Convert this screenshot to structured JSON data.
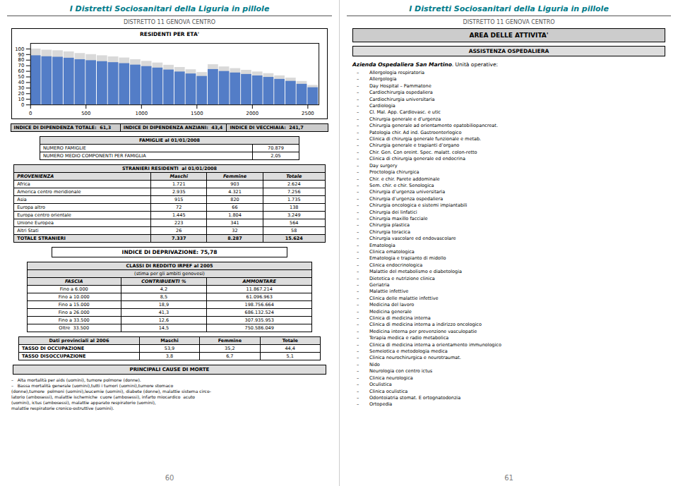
{
  "chart_data": {
    "type": "bar",
    "title": "RESIDENTI PER ETA'",
    "x": [
      0,
      100,
      200,
      300,
      400,
      500,
      600,
      700,
      800,
      900,
      1000,
      1100,
      1200,
      1300,
      1400,
      1500,
      1600,
      1700,
      1800,
      1900,
      2000,
      2100,
      2200,
      2300,
      2400,
      2500
    ],
    "series": [
      {
        "color": "#A0A0A0",
        "values": [
          100,
          98,
          97,
          95,
          92,
          90,
          88,
          86,
          84,
          81,
          78,
          75,
          71,
          67,
          63,
          58,
          72,
          68,
          65,
          62,
          59,
          56,
          52,
          48,
          42,
          35
        ]
      },
      {
        "color": "#4472C4",
        "values": [
          88,
          86.24,
          85.36,
          83.6,
          80.96,
          79.2,
          77.44,
          75.68,
          73.92,
          71.28,
          68.64,
          66,
          62.48,
          58.96,
          55.44,
          51.04,
          63.36,
          59.84,
          57.2,
          54.56,
          51.92,
          49.28,
          45.76,
          42.24,
          36.96,
          30.8
        ]
      }
    ],
    "xlim": [
      0,
      2600
    ],
    "xticks": [
      0,
      500,
      1000,
      1500,
      2000,
      2500
    ],
    "ylim": [
      0,
      110
    ],
    "yticks": [
      0,
      10,
      20,
      30,
      40,
      50,
      60,
      70,
      80,
      90,
      100
    ],
    "grid": false,
    "annotations": [
      [
        [
          "I Distretti Sociosanitari della Liguria in pillole",
          "DISTRETTO 11 GENOVA CENTRO"
        ],
        [
          [
            "INDICE DI DIPENDENZA TOTALE:  61,3",
            "INDICE DI DIPENDENZA ANZIANI:  43,4",
            "INDICE DI VECCHIAIA:  241,7"
          ]
        ],
        [
          "FAMIGLIE al 01/01/2008",
          [
            "NUMERO FAMIGLIE",
            "70.879"
          ],
          [
            "NUMERO MEDIO COMPONENTI PER FAMIGLIA",
            "2,05"
          ]
        ],
        [
          "STRANIERI RESIDENTI  al 01/01/2008",
          [
            "PROVENIENZA",
            "Maschi",
            "Femmine",
            "Totale"
          ],
          [
            "Africa",
            "1.721",
            "903",
            "2.624"
          ],
          [
            "America centro meridionale",
            "2.935",
            "4.321",
            "7.256"
          ],
          [
            "Asia",
            "915",
            "820",
            "1.735"
          ],
          [
            "Europa altro",
            "72",
            "66",
            "138"
          ],
          [
            "Europa centro orientale",
            "1.445",
            "1.804",
            "3.249"
          ],
          [
            "Unione Europea",
            "223",
            "341",
            "564"
          ],
          [
            "Altri Stati",
            "26",
            "32",
            "58"
          ],
          [
            "TOTALE STRANIERI",
            "7.337",
            "8.287",
            "15.624"
          ]
        ],
        [
          "INDICE DI DEPRIVAZIONE: 75,78"
        ],
        [
          "CLASSI DI REDDITO IRPEF al 2005",
          "(stima per gli ambiti genovesi)",
          [
            "FASCIA",
            "CONTRIBUENTI %",
            "AMMONTARE"
          ],
          [
            "Fino a 6.000",
            "4,2",
            "11.867.214"
          ],
          [
            "Fino a 10.000",
            "8,5",
            "61.096.963"
          ],
          [
            "Fino a 15.000",
            "18,9",
            "198.756.664"
          ],
          [
            "Fino a 26.000",
            "41,3",
            "686.132.524"
          ],
          [
            "Fino a 33.500",
            "12,6",
            "307.935.953"
          ],
          [
            "Oltre  33.500",
            "14,5",
            "750.586.049"
          ]
        ],
        [
          [
            "Dati provinciali al 2006",
            "Maschi",
            "Femmine",
            "Totale"
          ],
          [
            "TASSO DI OCCUPAZIONE",
            "53,9",
            "35,2",
            "44,4"
          ],
          [
            "TASSO DISOCCUPAZIONE",
            "3,8",
            "6,7",
            "5,1"
          ]
        ],
        [
          "PRINCIPALI CAUSE DI MORTE",
          "–   Alta mortalità per aids (uomini), tumore polmone (donne).",
          "–   Bassa mortalità generale (uomini),tutti i tumori (uomini),tumore stomaco",
          "(donne),tumore  polmoni (uomini),leucemie (uomini), diabete (donne), malattie sistema circo-",
          "latorio (ambosessi), malattie ischemiche  cuore (ambosessi), infarto miocardico  acuto",
          "(uomini), ictus (ambosessi), malattie apparato respiratorio (uomini),",
          "malattie respiratorie cronico-ostruttive (uomini)."
        ],
        [
          "60"
        ]
      ],
      [
        [
          "I Distretti Sociosanitari della Liguria in pillole",
          "DISTRETTO 11 GENOVA CENTRO"
        ],
        [
          "AREA DELLE ATTIVITA'"
        ],
        [
          "ASSISTENZA OSPEDALIERA"
        ],
        [
          [
            "Azienda Ospedaliera San Martino",
            ". Unità operative:"
          ],
          [
            "–",
            "Allergologia respiratoria"
          ],
          [
            "–",
            "Allergologia"
          ],
          [
            "–",
            "Day Hospital – Pammatone"
          ],
          [
            "–",
            "Cardiochirurgia ospedaliera"
          ],
          [
            "–",
            "Cardiochirurgia universitaria"
          ],
          [
            "–",
            "Cardiologia"
          ],
          [
            "–",
            "Cl. Mal. App. Cardiovasc. e utic"
          ],
          [
            "–",
            "Chirurgia generale e d’urgenza"
          ],
          [
            "–",
            "Chirurgia generale ad orientamento epatobiliopancreat."
          ],
          [
            "–",
            "Patologia chir. Ad ind. Gastroenterlogico"
          ],
          [
            "–",
            "Clinica di chirurgia generale funzionale e metab."
          ],
          [
            "–",
            "Chirurgia generale e trapianti d’organo"
          ],
          [
            "–",
            "Chir. Gen. Con oreint. Spec. malatt. colon-retto"
          ],
          [
            "–",
            "Clinica di chirurgia generale ed endocrina"
          ],
          [
            "–",
            "Day surgery"
          ],
          [
            "–",
            "Proctologia chirurgica"
          ],
          [
            "–",
            "Chir. e chir. Parete addominale"
          ],
          [
            "–",
            "Sem. chir. e chir. Senologica"
          ],
          [
            "–",
            "Chirurgia d’urgenza universitaria"
          ],
          [
            "–",
            "Chirurgia d’urgenza ospedaliera"
          ],
          [
            "–",
            "Chirurgia oncologica e sistemi impiantabili"
          ],
          [
            "–",
            "Chirurgia dei linfatici"
          ],
          [
            "–",
            "Chirurgia maxillo facciale"
          ],
          [
            "–",
            "Chirurgia plastica"
          ],
          [
            "–",
            "Chirurgia toracica"
          ],
          [
            "–",
            "Chirurgia vascolare ed endovascolare"
          ],
          [
            "–",
            "Ematologia"
          ],
          [
            "–",
            "Clinica ematologica"
          ],
          [
            "–",
            "Ematologia e trapianto di midollo"
          ],
          [
            "–",
            "Clinica endocrinologica"
          ],
          [
            "–",
            "Malattie del metabolismo e diabetologia"
          ],
          [
            "–",
            "Dietetica e nutrizione clinica"
          ],
          [
            "–",
            "Geriatria"
          ],
          [
            "–",
            "Malattie infettive"
          ],
          [
            "–",
            "Clinica delle malattie infettive"
          ],
          [
            "–",
            "Medicina del lavoro"
          ],
          [
            "–",
            "Medicina generale"
          ],
          [
            "–",
            "Clinica di medicina interna"
          ],
          [
            "–",
            "Clinica di medicina interna a indirizzo oncologico"
          ],
          [
            "–",
            "Medicina interna per prevenzione vasculopatie"
          ],
          [
            "–",
            "Terapia medica e radio metabolica"
          ],
          [
            "–",
            "Clinica di medicina interna a orientamento immunologico"
          ],
          [
            "–",
            "Semeiotica e metodologia medica"
          ],
          [
            "–",
            "Clinica neurochirurgica e neurotraumat."
          ],
          [
            "–",
            "Nido"
          ],
          [
            "–",
            "Neurologia con centro ictus"
          ],
          [
            "–",
            "Clinica neurologica"
          ],
          [
            "–",
            "Oculistica"
          ],
          [
            "–",
            "Clinica oculistica"
          ],
          [
            "–",
            "Odontoiatria stomat. E ortognatodonzia"
          ],
          [
            "–",
            "Ortopedia"
          ]
        ],
        [
          "61"
        ]
      ]
    ]
  }
}
